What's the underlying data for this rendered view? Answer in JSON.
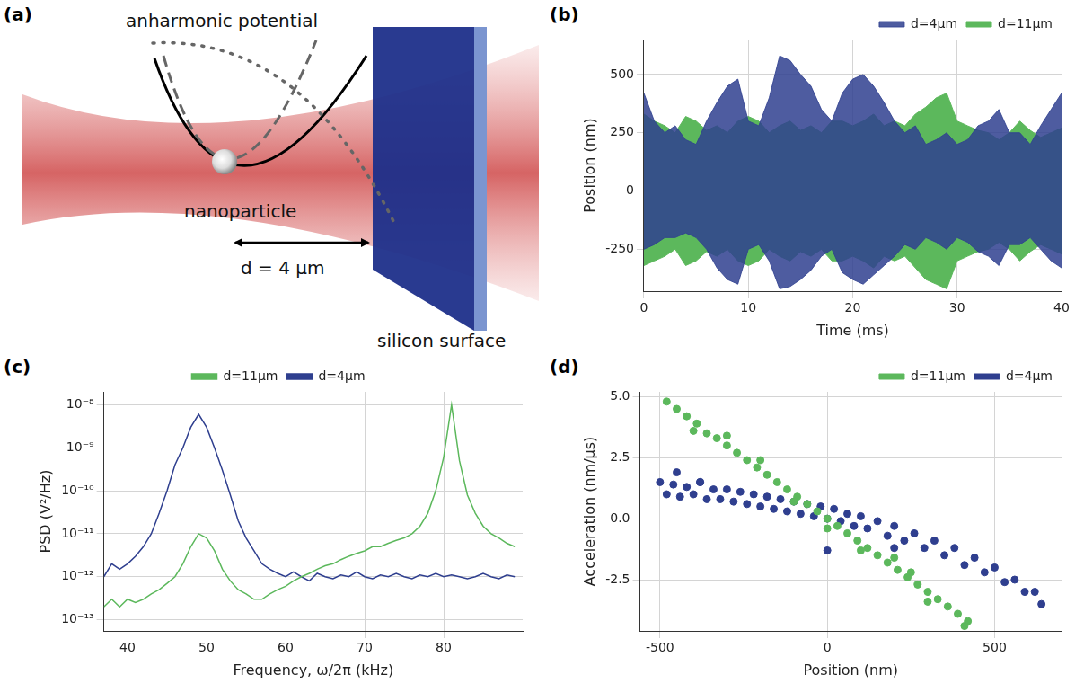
{
  "diagram": {
    "panel": "(a)",
    "texts": {
      "potential": "anharmonic potential",
      "particle": "nanoparticle",
      "distance": "d = 4 μm",
      "surface": "silicon surface"
    }
  },
  "chart_data": [
    {
      "panel": "(b)",
      "type": "area",
      "x_label": "Time (ms)",
      "y_label": "Position (nm)",
      "xlim": [
        0,
        40
      ],
      "xticks": [
        0,
        10,
        20,
        30,
        40
      ],
      "ylim": [
        -430,
        650
      ],
      "yticks": [
        -250,
        0,
        250,
        500
      ],
      "grid": true,
      "legend": "top-right",
      "x": [
        0,
        1,
        2,
        3,
        4,
        5,
        6,
        7,
        8,
        9,
        10,
        11,
        12,
        13,
        14,
        15,
        16,
        17,
        18,
        19,
        20,
        21,
        22,
        23,
        24,
        25,
        26,
        27,
        28,
        29,
        30,
        31,
        32,
        33,
        34,
        35,
        36,
        37,
        38,
        39,
        40
      ],
      "series": [
        {
          "name": "d=11μm",
          "color": "#5cb85c",
          "upper": [
            330,
            300,
            280,
            250,
            320,
            300,
            260,
            280,
            250,
            300,
            320,
            300,
            250,
            280,
            300,
            260,
            280,
            250,
            300,
            300,
            280,
            300,
            330,
            280,
            300,
            280,
            330,
            360,
            400,
            420,
            300,
            280,
            260,
            250,
            220,
            250,
            300,
            260,
            230,
            250,
            270
          ],
          "lower": [
            -320,
            -300,
            -280,
            -250,
            -320,
            -300,
            -260,
            -280,
            -250,
            -300,
            -320,
            -300,
            -250,
            -280,
            -300,
            -260,
            -280,
            -250,
            -300,
            -300,
            -280,
            -300,
            -330,
            -280,
            -300,
            -280,
            -330,
            -380,
            -400,
            -420,
            -300,
            -280,
            -260,
            -250,
            -220,
            -250,
            -300,
            -260,
            -230,
            -250,
            -270
          ]
        },
        {
          "name": "d=4μm",
          "color": "#2f3f8f",
          "upper": [
            420,
            300,
            250,
            280,
            220,
            200,
            300,
            380,
            450,
            480,
            300,
            280,
            400,
            580,
            560,
            500,
            450,
            350,
            300,
            420,
            480,
            500,
            450,
            380,
            300,
            250,
            280,
            200,
            220,
            250,
            200,
            220,
            280,
            300,
            350,
            250,
            250,
            200,
            280,
            350,
            420
          ],
          "lower": [
            -250,
            -230,
            -200,
            -200,
            -180,
            -200,
            -250,
            -330,
            -380,
            -400,
            -250,
            -230,
            -300,
            -420,
            -410,
            -380,
            -340,
            -280,
            -250,
            -350,
            -380,
            -400,
            -360,
            -320,
            -280,
            -230,
            -250,
            -200,
            -220,
            -250,
            -200,
            -220,
            -260,
            -280,
            -320,
            -230,
            -230,
            -200,
            -250,
            -300,
            -330
          ]
        }
      ]
    },
    {
      "panel": "(c)",
      "type": "line",
      "x_label": "Frequency, ω/2π (kHz)",
      "y_label": "PSD (V²/Hz)",
      "log": "y",
      "xlim": [
        37,
        90
      ],
      "xticks": [
        40,
        50,
        60,
        70,
        80
      ],
      "ylim": [
        5.5e-14,
        2e-08
      ],
      "yticks": [
        {
          "value": 1e-13,
          "label": "10⁻¹³"
        },
        {
          "value": 1e-12,
          "label": "10⁻¹²"
        },
        {
          "value": 1e-11,
          "label": "10⁻¹¹"
        },
        {
          "value": 1e-10,
          "label": "10⁻¹⁰"
        },
        {
          "value": 1e-09,
          "label": "10⁻⁹"
        },
        {
          "value": 1e-08,
          "label": "10⁻⁸"
        }
      ],
      "grid": true,
      "legend": "top",
      "x": [
        37,
        38,
        39,
        40,
        41,
        42,
        43,
        44,
        45,
        46,
        47,
        48,
        49,
        50,
        51,
        52,
        53,
        54,
        55,
        56,
        57,
        58,
        59,
        60,
        61,
        62,
        63,
        64,
        65,
        66,
        67,
        68,
        69,
        70,
        71,
        72,
        73,
        74,
        75,
        76,
        77,
        78,
        79,
        80,
        81,
        82,
        83,
        84,
        85,
        86,
        87,
        88,
        89
      ],
      "series": [
        {
          "name": "d=11μm",
          "color": "#5cb85c",
          "values": [
            2e-13,
            3e-13,
            2e-13,
            3e-13,
            2.5e-13,
            3e-13,
            4e-13,
            5e-13,
            7e-13,
            1e-12,
            2e-12,
            5e-12,
            1e-11,
            8e-12,
            4e-12,
            1.5e-12,
            8e-13,
            5e-13,
            4e-13,
            3e-13,
            3e-13,
            4e-13,
            5e-13,
            6e-13,
            8e-13,
            1e-12,
            1.2e-12,
            1.5e-12,
            1.8e-12,
            2e-12,
            2.5e-12,
            3e-12,
            3.5e-12,
            4e-12,
            5e-12,
            5e-12,
            6e-12,
            7e-12,
            8e-12,
            1e-11,
            1.5e-11,
            3e-11,
            1e-10,
            6e-10,
            1e-08,
            5e-10,
            8e-11,
            3e-11,
            1.5e-11,
            1e-11,
            8e-12,
            6e-12,
            5e-12
          ]
        },
        {
          "name": "d=4μm",
          "color": "#2f3f8f",
          "values": [
            1e-12,
            2e-12,
            1.5e-12,
            2e-12,
            3e-12,
            5e-12,
            1e-11,
            3e-11,
            1e-10,
            4e-10,
            1e-09,
            3e-09,
            6e-09,
            3e-09,
            1e-09,
            3e-10,
            8e-11,
            2e-11,
            8e-12,
            4e-12,
            2e-12,
            1.5e-12,
            1.2e-12,
            1e-12,
            1.3e-12,
            1e-12,
            8e-13,
            1.2e-12,
            1e-12,
            9e-13,
            1.1e-12,
            1e-12,
            1.3e-12,
            1e-12,
            9e-13,
            1.1e-12,
            1e-12,
            1.2e-12,
            1e-12,
            9e-13,
            1.1e-12,
            1e-12,
            1.2e-12,
            1e-12,
            1.1e-12,
            1e-12,
            9e-13,
            1e-12,
            1.2e-12,
            1e-12,
            9e-13,
            1.1e-12,
            1e-12
          ]
        }
      ]
    },
    {
      "panel": "(d)",
      "type": "scatter",
      "x_label": "Position (nm)",
      "y_label": "Acceleration (nm/μs)",
      "xlim": [
        -560,
        700
      ],
      "xticks": [
        -500,
        0,
        500
      ],
      "ylim": [
        -4.6,
        5.2
      ],
      "yticks": [
        -2.5,
        {
          "value": 0,
          "label": "0.0"
        },
        2.5,
        {
          "value": 5,
          "label": "5.0"
        }
      ],
      "grid": true,
      "legend": "top-right",
      "series": [
        {
          "name": "d=11μm",
          "color": "#5cb85c",
          "x": [
            -480,
            -450,
            -420,
            -390,
            -360,
            -330,
            -300,
            -270,
            -240,
            -210,
            -180,
            -150,
            -120,
            -90,
            -60,
            -30,
            0,
            30,
            60,
            90,
            120,
            150,
            180,
            210,
            240,
            270,
            300,
            330,
            360,
            390,
            420,
            -400,
            -200,
            -100,
            100,
            200,
            300,
            -300,
            0,
            250,
            410
          ],
          "y": [
            4.8,
            4.5,
            4.2,
            3.9,
            3.5,
            3.3,
            3.0,
            2.7,
            2.4,
            2.1,
            1.8,
            1.5,
            1.2,
            0.9,
            0.6,
            0.3,
            0.0,
            -0.3,
            -0.6,
            -0.9,
            -1.2,
            -1.5,
            -1.8,
            -2.1,
            -2.4,
            -2.7,
            -3.0,
            -3.3,
            -3.6,
            -3.9,
            -4.2,
            3.6,
            2.4,
            0.7,
            -1.3,
            -1.6,
            -3.4,
            3.4,
            -0.4,
            -2.2,
            -4.4
          ]
        },
        {
          "name": "d=4μm",
          "color": "#2f3f8f",
          "x": [
            -500,
            -480,
            -460,
            -440,
            -420,
            -400,
            -380,
            -360,
            -340,
            -320,
            -300,
            -280,
            -260,
            -240,
            -220,
            -200,
            -180,
            -160,
            -140,
            -120,
            -100,
            -80,
            -60,
            -40,
            -20,
            0,
            20,
            40,
            60,
            80,
            100,
            120,
            150,
            180,
            200,
            230,
            260,
            290,
            320,
            350,
            380,
            410,
            440,
            470,
            500,
            530,
            560,
            590,
            620,
            640,
            -450,
            -380,
            0,
            200
          ],
          "y": [
            1.5,
            1.0,
            1.4,
            0.9,
            1.3,
            1.0,
            1.5,
            0.8,
            1.2,
            0.8,
            1.2,
            0.7,
            1.1,
            0.6,
            1.0,
            0.5,
            0.9,
            0.4,
            0.8,
            0.3,
            0.7,
            0.2,
            0.6,
            0.1,
            0.5,
            0.0,
            0.4,
            -0.1,
            0.2,
            -0.3,
            0.1,
            -0.4,
            -0.1,
            -0.7,
            -0.3,
            -0.9,
            -0.6,
            -1.2,
            -0.9,
            -1.5,
            -1.2,
            -1.9,
            -1.6,
            -2.2,
            -2.0,
            -2.6,
            -2.5,
            -3.0,
            -3.0,
            -3.5,
            1.9,
            1.5,
            -1.3,
            -1.2
          ]
        }
      ]
    }
  ]
}
